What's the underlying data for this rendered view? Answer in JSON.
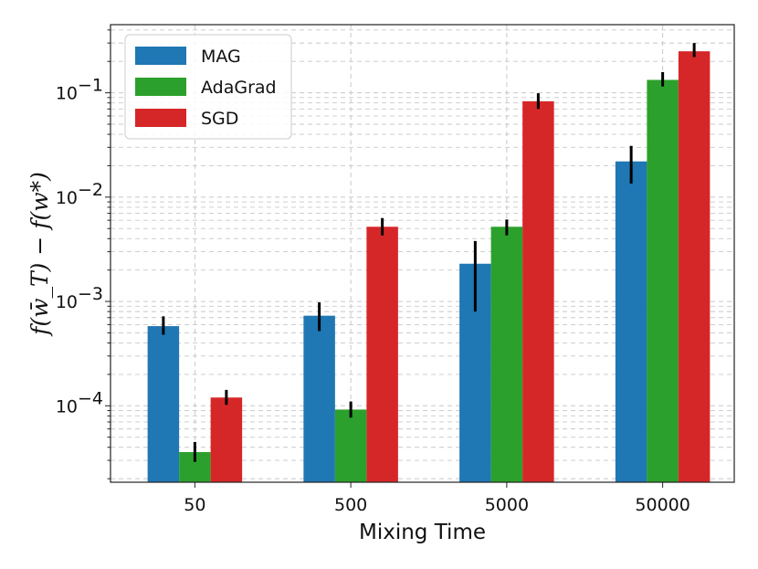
{
  "chart_data": {
    "type": "bar",
    "scale": "log",
    "categories": [
      "50",
      "500",
      "5000",
      "50000"
    ],
    "series": [
      {
        "name": "MAG",
        "color": "#1f77b4",
        "values": [
          0.00058,
          0.00073,
          0.0023,
          0.022
        ],
        "err_low": [
          0.00048,
          0.00052,
          0.0008,
          0.0135
        ],
        "err_high": [
          0.00072,
          0.00098,
          0.0038,
          0.031
        ]
      },
      {
        "name": "AdaGrad",
        "color": "#2ca02c",
        "values": [
          3.6e-05,
          9.2e-05,
          0.0052,
          0.133
        ],
        "err_low": [
          2.9e-05,
          7.7e-05,
          0.0043,
          0.115
        ],
        "err_high": [
          4.5e-05,
          0.00011,
          0.0061,
          0.158
        ]
      },
      {
        "name": "SGD",
        "color": "#d62728",
        "values": [
          0.00012,
          0.0052,
          0.083,
          0.25
        ],
        "err_low": [
          0.000102,
          0.0043,
          0.07,
          0.22
        ],
        "err_high": [
          0.000142,
          0.0063,
          0.099,
          0.3
        ]
      }
    ],
    "xlabel": "Mixing Time",
    "ylabel": "f(w̄_T) − f(w*)",
    "ylim": [
      1.85e-05,
      0.45
    ],
    "yticks": [
      {
        "value": 0.0001,
        "base": "10",
        "exp": "−4"
      },
      {
        "value": 0.001,
        "base": "10",
        "exp": "−3"
      },
      {
        "value": 0.01,
        "base": "10",
        "exp": "−2"
      },
      {
        "value": 0.1,
        "base": "10",
        "exp": "−1"
      }
    ],
    "grid": true,
    "legend": "top-left"
  }
}
